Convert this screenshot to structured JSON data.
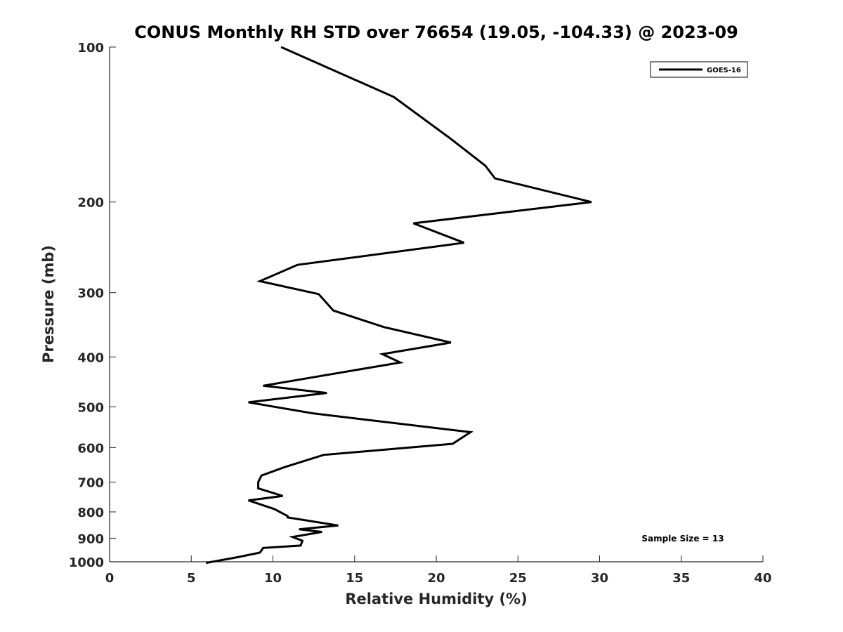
{
  "chart_data": {
    "type": "line",
    "title": "CONUS Monthly RH STD over 76654 (19.05, -104.33) @ 2023-09",
    "xlabel": "Relative Humidity (%)",
    "ylabel": "Pressure (mb)",
    "xlim": [
      0,
      40
    ],
    "ylim": [
      1000,
      100
    ],
    "yscale": "log",
    "y_reversed": true,
    "grid": false,
    "legend_position": "top-right",
    "x_ticks": [
      0,
      5,
      10,
      15,
      20,
      25,
      30,
      35,
      40
    ],
    "y_ticks": [
      100,
      200,
      300,
      400,
      500,
      600,
      700,
      800,
      900,
      1000
    ],
    "annotations": [
      "Sample Size = 13"
    ],
    "series": [
      {
        "name": "GOES-16",
        "color": "#000000",
        "x": [
          10.5,
          17.4,
          20.8,
          23.0,
          23.6,
          29.5,
          18.6,
          21.7,
          11.5,
          9.2,
          12.8,
          13.7,
          16.8,
          20.9,
          16.7,
          17.8,
          9.4,
          13.3,
          8.5,
          12.5,
          22.1,
          21.0,
          13.1,
          10.7,
          9.3,
          9.1,
          9.1,
          10.6,
          8.5,
          10.1,
          10.9,
          10.9,
          14.0,
          11.6,
          13.0,
          11.2,
          11.8,
          11.7,
          9.4,
          9.2,
          7.8,
          5.9
        ],
        "y": [
          100,
          125,
          150,
          170,
          180,
          200,
          220,
          240,
          265,
          285,
          302,
          325,
          350,
          375,
          395,
          410,
          455,
          470,
          490,
          515,
          560,
          590,
          620,
          655,
          680,
          700,
          720,
          745,
          760,
          790,
          815,
          820,
          850,
          865,
          875,
          895,
          910,
          930,
          940,
          960,
          980,
          1005
        ]
      }
    ]
  }
}
